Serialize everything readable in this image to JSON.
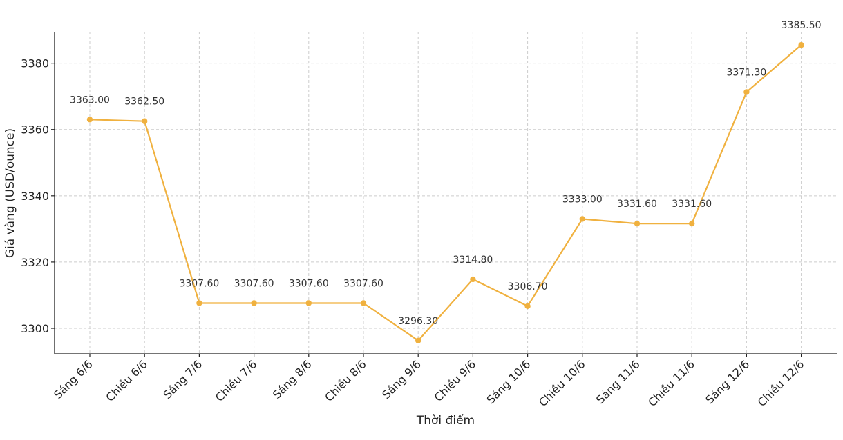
{
  "chart_data": {
    "type": "line",
    "title": "",
    "xlabel": "Thời điểm",
    "ylabel": "Giá vàng (USD/ounce)",
    "categories": [
      "Sáng 6/6",
      "Chiều 6/6",
      "Sáng 7/6",
      "Chiều 7/6",
      "Sáng 8/6",
      "Chiều 8/6",
      "Sáng 9/6",
      "Chiều 9/6",
      "Sáng 10/6",
      "Chiều 10/6",
      "Sáng 11/6",
      "Chiều 11/6",
      "Sáng 12/6",
      "Chiều 12/6"
    ],
    "values": [
      3363.0,
      3362.5,
      3307.6,
      3307.6,
      3307.6,
      3307.6,
      3296.3,
      3314.8,
      3306.7,
      3333.0,
      3331.6,
      3331.6,
      3371.3,
      3385.5
    ],
    "data_labels": [
      "3363.00",
      "3362.50",
      "3307.60",
      "3307.60",
      "3307.60",
      "3307.60",
      "3296.30",
      "3314.80",
      "3306.70",
      "3333.00",
      "3331.60",
      "3331.60",
      "3371.30",
      "3385.50"
    ],
    "yticks": [
      3300,
      3320,
      3340,
      3360,
      3380
    ],
    "ytick_labels": [
      "3300",
      "3320",
      "3340",
      "3360",
      "3380"
    ],
    "ylim": [
      3292.3,
      3389.5
    ],
    "grid": true,
    "line_color": "#F0B13F",
    "marker_color": "#F0B13F"
  }
}
